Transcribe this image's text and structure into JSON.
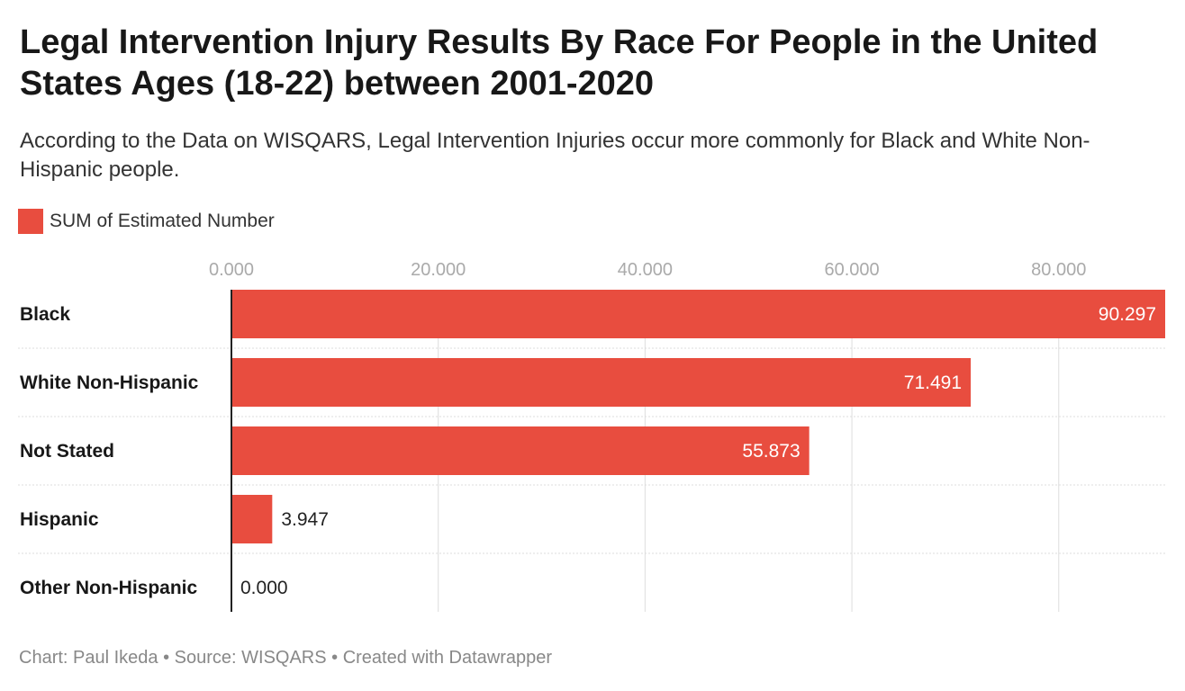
{
  "title": "Legal Intervention Injury Results By Race For People in the United States Ages (18-22) between 2001-2020",
  "subtitle": "According to the Data on WISQARS, Legal Intervention Injuries occur more commonly for Black and White Non-Hispanic people.",
  "footer": "Chart: Paul Ikeda • Source: WISQARS • Created with Datawrapper",
  "colors": {
    "bar": "#e84d3f",
    "inside_label": "#ffffff",
    "outside_label": "#222222",
    "grid": "#dddddd",
    "baseline": "#222222"
  },
  "chart_data": {
    "type": "bar",
    "orientation": "horizontal",
    "categories": [
      "Black",
      "White Non-Hispanic",
      "Not Stated",
      "Hispanic",
      "Other Non-Hispanic"
    ],
    "series": [
      {
        "name": "SUM of Estimated Number",
        "values": [
          90.297,
          71.491,
          55.873,
          3.947,
          0.0
        ],
        "labels": [
          "90.297",
          "71.491",
          "55.873",
          "3.947",
          "0.000"
        ]
      }
    ],
    "xlim": [
      0,
      90.297
    ],
    "xticks": [
      0,
      20,
      40,
      60,
      80
    ],
    "xtick_labels": [
      "0.000",
      "20.000",
      "40.000",
      "60.000",
      "80.000"
    ],
    "grid": true,
    "legend_position": "top-left"
  }
}
